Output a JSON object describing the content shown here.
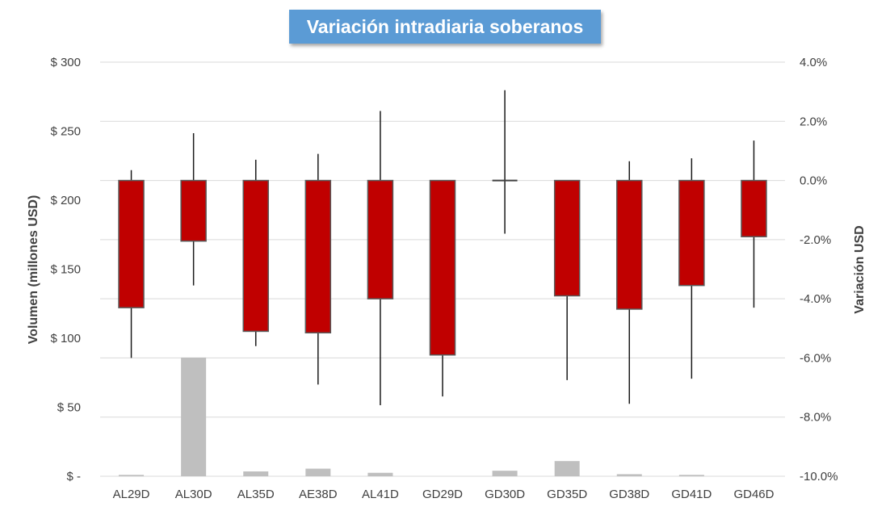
{
  "chart_data": {
    "type": "candlestick",
    "title": "Variación intradiaria soberanos",
    "categories": [
      "AL29D",
      "AL30D",
      "AL35D",
      "AE38D",
      "AL41D",
      "GD29D",
      "GD30D",
      "GD35D",
      "GD38D",
      "GD41D",
      "GD46D"
    ],
    "left_axis": {
      "label": "Volumen (millones USD)",
      "ylim": [
        0,
        300
      ],
      "ticks": [
        0,
        50,
        100,
        150,
        200,
        250,
        300
      ],
      "tick_labels": [
        "$ -",
        "$ 50",
        "$ 100",
        "$ 150",
        "$ 200",
        "$ 250",
        "$ 300"
      ]
    },
    "right_axis": {
      "label": "Variación USD",
      "ylim": [
        -10,
        4
      ],
      "ticks": [
        4,
        2,
        0,
        -2,
        -4,
        -6,
        -8,
        -10
      ],
      "tick_labels": [
        "4.0%",
        "2.0%",
        "0.0%",
        "-2.0%",
        "-4.0%",
        "-6.0%",
        "-8.0%",
        "-10.0%"
      ]
    },
    "volume": [
      1,
      86,
      3.5,
      5.5,
      2.5,
      0,
      4,
      11,
      1.5,
      1,
      0
    ],
    "variation": [
      {
        "open": 0.0,
        "close": -4.3,
        "high": 0.35,
        "low": -6.0
      },
      {
        "open": 0.0,
        "close": -2.05,
        "high": 1.6,
        "low": -3.55
      },
      {
        "open": 0.0,
        "close": -5.1,
        "high": 0.7,
        "low": -5.6
      },
      {
        "open": 0.0,
        "close": -5.15,
        "high": 0.9,
        "low": -6.9
      },
      {
        "open": 0.0,
        "close": -4.0,
        "high": 2.35,
        "low": -7.6
      },
      {
        "open": 0.0,
        "close": -5.9,
        "high": 0.0,
        "low": -7.3
      },
      {
        "open": 0.0,
        "close": 0.0,
        "high": 3.05,
        "low": -1.8
      },
      {
        "open": 0.0,
        "close": -3.9,
        "high": 0.0,
        "low": -6.75
      },
      {
        "open": 0.0,
        "close": -4.35,
        "high": 0.65,
        "low": -7.55
      },
      {
        "open": 0.0,
        "close": -3.55,
        "high": 0.75,
        "low": -6.7
      },
      {
        "open": 0.0,
        "close": -1.9,
        "high": 1.35,
        "low": -4.3
      }
    ],
    "colors": {
      "candle_fill": "#c00000",
      "candle_edge": "#595959",
      "wick": "#1a1a1a",
      "volume_bar": "#bfbfbf",
      "grid": "#d9d9d9",
      "title_bg": "#5b9bd5"
    },
    "grid": true,
    "legend": "none"
  }
}
